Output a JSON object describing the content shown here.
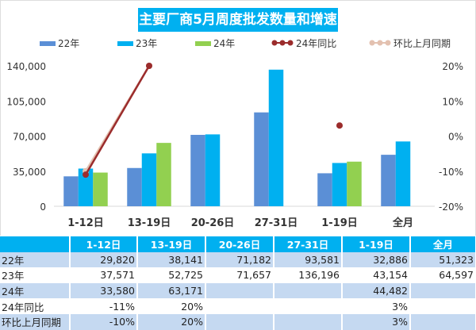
{
  "chart_data": {
    "type": "bar",
    "title": "主要厂商5月周度批发数量和增速",
    "categories": [
      "1-12日",
      "13-19日",
      "20-26日",
      "27-31日",
      "1-19日",
      "全月"
    ],
    "series": [
      {
        "name": "22年",
        "kind": "bar",
        "axis": "left",
        "color": "#5b8fd6",
        "values": [
          29820,
          38141,
          71182,
          93581,
          32886,
          51323
        ]
      },
      {
        "name": "23年",
        "kind": "bar",
        "axis": "left",
        "color": "#00b0f0",
        "values": [
          37571,
          52725,
          71657,
          136196,
          43154,
          64597
        ]
      },
      {
        "name": "24年",
        "kind": "bar",
        "axis": "left",
        "color": "#92d050",
        "values": [
          33580,
          63171,
          null,
          null,
          44482,
          null
        ]
      },
      {
        "name": "24年同比",
        "kind": "line",
        "axis": "right",
        "color": "#9b2c2c",
        "values": [
          -11,
          20,
          null,
          null,
          3,
          null
        ]
      },
      {
        "name": "环比上月同期",
        "kind": "line",
        "axis": "right",
        "color": "#e3c1b0",
        "values": [
          -10,
          20,
          null,
          null,
          3,
          null
        ]
      }
    ],
    "left_axis": {
      "ticks": [
        "0",
        "35,000",
        "70,000",
        "105,000",
        "140,000"
      ],
      "range": [
        0,
        140000
      ]
    },
    "right_axis": {
      "ticks": [
        "-20%",
        "-10%",
        "0%",
        "10%",
        "20%"
      ],
      "range": [
        -20,
        20
      ]
    },
    "legend": "top",
    "grid": false
  },
  "table": {
    "headers": [
      "",
      "1-12日",
      "13-19日",
      "20-26日",
      "27-31日",
      "1-19日",
      "全月"
    ],
    "rows": [
      [
        "22年",
        "29,820",
        "38,141",
        "71,182",
        "93,581",
        "32,886",
        "51,323"
      ],
      [
        "23年",
        "37,571",
        "52,725",
        "71,657",
        "136,196",
        "43,154",
        "64,597"
      ],
      [
        "24年",
        "33,580",
        "63,171",
        "",
        "",
        "44,482",
        ""
      ],
      [
        "24年同比",
        "-11%",
        "20%",
        "",
        "",
        "3%",
        ""
      ],
      [
        "环比上月同期",
        "-10%",
        "20%",
        "",
        "",
        "3%",
        ""
      ]
    ]
  }
}
